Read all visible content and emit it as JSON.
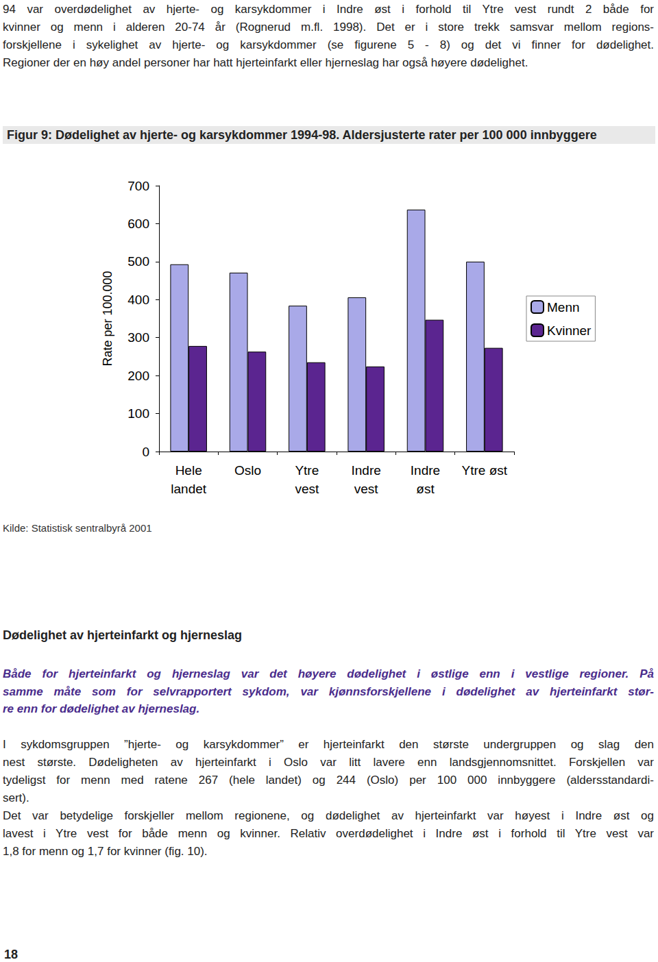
{
  "intro": {
    "lines": [
      "94 var overdødelighet av hjerte- og karsykdommer i Indre øst i forhold til Ytre vest rundt 2 både for",
      "kvinner og menn i alderen 20-74 år (Rognerud m.fl. 1998). Det er i store trekk samsvar mellom regions-",
      "forskjellene i sykelighet av hjerte- og karsykdommer (se figurene 5 - 8) og det vi finner for dødelighet.",
      "Regioner der en høy andel personer har hatt hjerteinfarkt eller hjerneslag har også høyere dødelighet."
    ]
  },
  "figure": {
    "title": "Figur 9: Dødelighet av hjerte- og karsykdommer 1994-98. Aldersjusterte rater per 100 000 innbyggere",
    "source": "Kilde: Statistisk sentralbyrå 2001"
  },
  "chart_data": {
    "type": "bar",
    "y_label": "Rate per 100.000",
    "categories": [
      "Hele\nlandet",
      "Oslo",
      "Ytre\nvest",
      "Indre\nvest",
      "Indre\nøst",
      "Ytre øst"
    ],
    "series": [
      {
        "name": "Menn",
        "color": "#a9a9e8",
        "values": [
          493,
          471,
          384,
          406,
          637,
          500
        ]
      },
      {
        "name": "Kvinner",
        "color": "#5b2590",
        "values": [
          278,
          263,
          235,
          224,
          347,
          273
        ]
      }
    ],
    "ylim": [
      0,
      700
    ],
    "yticks": [
      0,
      100,
      200,
      300,
      400,
      500,
      600,
      700
    ],
    "grid": false,
    "legend": "right"
  },
  "section": {
    "heading": "Dødelighet av hjerteinfarkt og hjerneslag",
    "lead": [
      "Både for hjerteinfarkt og hjerneslag var det høyere dødelighet i østlige enn i vestlige regioner. På",
      "samme måte som for selvrapportert sykdom, var kjønnsforskjellene i dødelighet av hjerteinfarkt stør-",
      "re enn for dødelighet av hjerneslag."
    ],
    "paragraphs": [
      [
        "I sykdomsgruppen ”hjerte- og karsykdommer” er hjerteinfarkt den største undergruppen og slag den",
        "nest største. Dødeligheten av hjerteinfarkt i Oslo var litt lavere enn landsgjennomsnittet. Forskjellen var",
        "tydeligst for menn med ratene 267 (hele landet) og 244 (Oslo) per 100 000 innbyggere (aldersstandardi-",
        "sert)."
      ],
      [
        "Det var betydelige forskjeller mellom regionene, og dødelighet av hjerteinfarkt var høyest i Indre øst og",
        "lavest i Ytre vest for både menn og kvinner. Relativ overdødelighet i Indre øst i forhold til Ytre vest var",
        "1,8 for menn og 1,7 for kvinner (fig. 10)."
      ]
    ]
  },
  "page_number": 18
}
